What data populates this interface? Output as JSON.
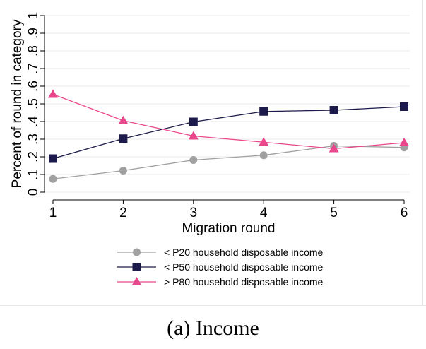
{
  "chart_data": {
    "type": "line",
    "title": "",
    "xlabel": "Migration round",
    "ylabel": "Percent of round in category",
    "x": [
      1,
      2,
      3,
      4,
      5,
      6
    ],
    "xticks": [
      "1",
      "2",
      "3",
      "4",
      "5",
      "6"
    ],
    "xlim": [
      1,
      6
    ],
    "ylim": [
      0,
      1
    ],
    "yticks": [
      "0",
      ".1",
      ".2",
      ".3",
      ".4",
      ".5",
      ".6",
      ".7",
      ".8",
      ".9",
      "1"
    ],
    "grid": true,
    "legend_position": "bottom",
    "series": [
      {
        "name": "< P20 household disposable income",
        "color": "#a0a0a0",
        "marker": "circle",
        "values": [
          0.075,
          0.122,
          0.182,
          0.209,
          0.262,
          0.253
        ]
      },
      {
        "name": "< P50 household disposable income",
        "color": "#1c1a4a",
        "marker": "square",
        "values": [
          0.19,
          0.303,
          0.398,
          0.457,
          0.464,
          0.484
        ]
      },
      {
        "name": "> P80 household disposable income",
        "color": "#e8478b",
        "marker": "triangle",
        "values": [
          0.554,
          0.405,
          0.318,
          0.283,
          0.246,
          0.28
        ]
      }
    ]
  },
  "caption": "(a) Income"
}
